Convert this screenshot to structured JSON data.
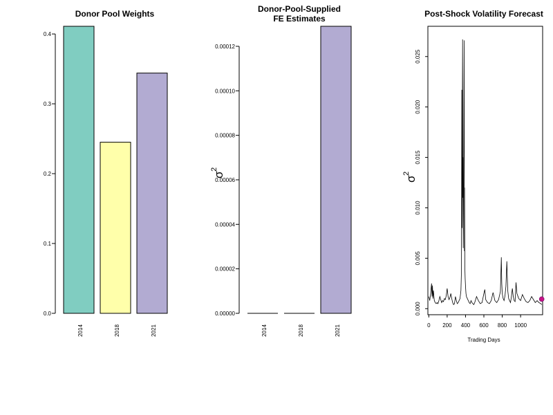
{
  "chart_data": [
    {
      "type": "bar",
      "title": "Donor Pool Weights",
      "categories": [
        "2014",
        "2018",
        "2021"
      ],
      "values": [
        0.411,
        0.245,
        0.344
      ],
      "ylim": [
        0,
        0.411
      ],
      "yticks": [
        "0.0",
        "0.1",
        "0.2",
        "0.3",
        "0.4"
      ],
      "ytick_values": [
        0,
        0.1,
        0.2,
        0.3,
        0.4
      ],
      "colors": [
        "#80CDC1",
        "#FFFFAA",
        "#B2ABD2"
      ],
      "border_color": "#000000"
    },
    {
      "type": "bar",
      "title_line1": "Donor-Pool-Supplied",
      "title_line2": "FE Estimates",
      "ylabel_symbol": "σ",
      "ylabel_exponent": "2",
      "categories": [
        "2014",
        "2018",
        "2021"
      ],
      "values": [
        0,
        0,
        0.000129
      ],
      "ylim": [
        0,
        0.000129
      ],
      "yticks": [
        "0.00000",
        "0.00002",
        "0.00004",
        "0.00006",
        "0.00008",
        "0.00010",
        "0.00012"
      ],
      "ytick_values": [
        0,
        2e-05,
        4e-05,
        6e-05,
        8e-05,
        0.0001,
        0.00012
      ],
      "colors": [
        "#80CDC1",
        "#FFFFAA",
        "#B2ABD2"
      ],
      "border_color": "#000000"
    },
    {
      "type": "line",
      "title": "Post-Shock Volatility Forecast",
      "xlabel": "Trading Days",
      "ylabel_symbol": "σ",
      "ylabel_exponent": "2",
      "xlim": [
        -10,
        1240
      ],
      "ylim": [
        -0.0006,
        0.028
      ],
      "xticks": [
        "0",
        "200",
        "400",
        "600",
        "800",
        "1000"
      ],
      "xtick_values": [
        0,
        200,
        400,
        600,
        800,
        1000
      ],
      "yticks": [
        "0.000",
        "0.005",
        "0.010",
        "0.015",
        "0.020",
        "0.025"
      ],
      "ytick_values": [
        0,
        0.005,
        0.01,
        0.015,
        0.02,
        0.025
      ],
      "line_color": "#000000",
      "marker_color": "#C71585",
      "forecast_point": {
        "x": 1230,
        "y": 0.00095
      },
      "series": [
        {
          "x": [
            0,
            10,
            20,
            30,
            35,
            40,
            45,
            50,
            60,
            70,
            80,
            90,
            100,
            110,
            120,
            130,
            140,
            150,
            160,
            170,
            180,
            190,
            200,
            210,
            220,
            230,
            240,
            250,
            260,
            270,
            280,
            290,
            300,
            310,
            320,
            330,
            340,
            350,
            355,
            360,
            362,
            365,
            368,
            370,
            372,
            375,
            378,
            380,
            382,
            385,
            388,
            390,
            393,
            396,
            400,
            405,
            410,
            420,
            430,
            440,
            450,
            460,
            470,
            480,
            490,
            500,
            520,
            540,
            560,
            580,
            600,
            610,
            620,
            640,
            660,
            680,
            700,
            720,
            740,
            760,
            780,
            790,
            795,
            800,
            810,
            820,
            830,
            840,
            850,
            860,
            870,
            880,
            890,
            900,
            910,
            920,
            930,
            940,
            950,
            960,
            980,
            1000,
            1020,
            1040,
            1060,
            1080,
            1100,
            1120,
            1140,
            1160,
            1180,
            1200,
            1220,
            1230
          ],
          "values": [
            0.0012,
            0.0008,
            0.0015,
            0.0025,
            0.0012,
            0.0023,
            0.001,
            0.0018,
            0.0008,
            0.0006,
            0.0005,
            0.0006,
            0.0005,
            0.0008,
            0.0012,
            0.0009,
            0.0006,
            0.0008,
            0.0007,
            0.001,
            0.0009,
            0.0013,
            0.002,
            0.0012,
            0.0009,
            0.0011,
            0.0015,
            0.001,
            0.0006,
            0.0004,
            0.0005,
            0.0012,
            0.0008,
            0.0005,
            0.0006,
            0.0008,
            0.001,
            0.0018,
            0.0035,
            0.0217,
            0.008,
            0.019,
            0.0267,
            0.011,
            0.015,
            0.006,
            0.0095,
            0.014,
            0.02,
            0.0266,
            0.0057,
            0.012,
            0.004,
            0.003,
            0.0022,
            0.0015,
            0.0012,
            0.001,
            0.0008,
            0.0006,
            0.0005,
            0.0008,
            0.0006,
            0.0005,
            0.0004,
            0.0006,
            0.0012,
            0.0008,
            0.0005,
            0.0006,
            0.0015,
            0.0019,
            0.0009,
            0.0006,
            0.0005,
            0.0008,
            0.0016,
            0.0008,
            0.0006,
            0.0009,
            0.0017,
            0.0051,
            0.0025,
            0.0015,
            0.001,
            0.0008,
            0.0013,
            0.0022,
            0.0047,
            0.0018,
            0.001,
            0.0008,
            0.0006,
            0.0012,
            0.002,
            0.0012,
            0.0008,
            0.0007,
            0.0026,
            0.0015,
            0.001,
            0.0008,
            0.0014,
            0.001,
            0.0007,
            0.0006,
            0.0008,
            0.0012,
            0.0009,
            0.0006,
            0.0008,
            0.0006,
            0.0005,
            0.0004
          ]
        }
      ]
    }
  ]
}
